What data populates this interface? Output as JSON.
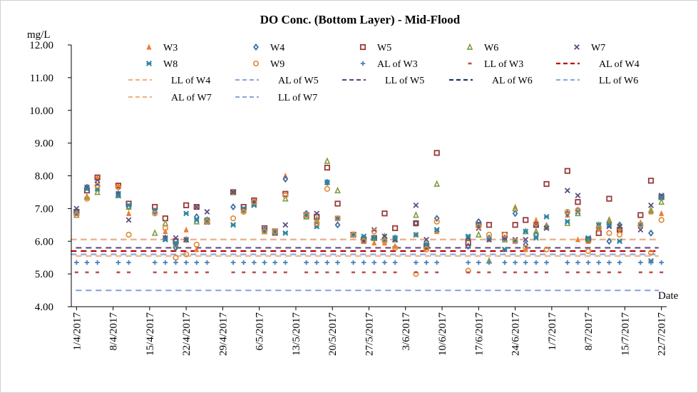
{
  "chart_data": {
    "type": "scatter",
    "title": "DO Conc. (Bottom Layer) - Mid-Flood",
    "ylabel": "mg/L",
    "xlabel": "Date",
    "ylim": [
      4,
      12
    ],
    "xlim": [
      "31/3/2017",
      "23/7/2017"
    ],
    "grid": false,
    "legend_position": "top",
    "y_ticks": [
      "4.00",
      "5.00",
      "6.00",
      "7.00",
      "8.00",
      "9.00",
      "10.00",
      "11.00",
      "12.00"
    ],
    "x_ticks": [
      "1/4/2017",
      "8/4/2017",
      "15/4/2017",
      "22/4/2017",
      "29/4/2017",
      "6/5/2017",
      "13/5/2017",
      "20/5/2017",
      "27/5/2017",
      "3/6/2017",
      "10/6/2017",
      "17/6/2017",
      "24/6/2017",
      "1/7/2017",
      "8/7/2017",
      "15/7/2017",
      "22/7/2017"
    ],
    "dates": [
      "1/4/2017",
      "3/4/2017",
      "5/4/2017",
      "9/4/2017",
      "11/4/2017",
      "16/4/2017",
      "18/4/2017",
      "20/4/2017",
      "22/4/2017",
      "24/4/2017",
      "26/4/2017",
      "1/5/2017",
      "3/5/2017",
      "5/5/2017",
      "7/5/2017",
      "9/5/2017",
      "11/5/2017",
      "15/5/2017",
      "17/5/2017",
      "19/5/2017",
      "21/5/2017",
      "24/5/2017",
      "26/5/2017",
      "28/5/2017",
      "30/5/2017",
      "1/6/2017",
      "5/6/2017",
      "7/6/2017",
      "9/6/2017",
      "15/6/2017",
      "17/6/2017",
      "19/6/2017",
      "22/6/2017",
      "24/6/2017",
      "26/6/2017",
      "28/6/2017",
      "30/6/2017",
      "4/7/2017",
      "6/7/2017",
      "8/7/2017",
      "10/7/2017",
      "12/7/2017",
      "14/7/2017",
      "18/7/2017",
      "20/7/2017",
      "22/7/2017"
    ],
    "series": [
      {
        "name": "W3",
        "marker": "triangle-filled",
        "color": "#ED7D31",
        "values": [
          6.85,
          7.35,
          7.95,
          7.7,
          6.85,
          6.95,
          6.3,
          5.9,
          6.35,
          5.75,
          6.6,
          7.5,
          6.95,
          7.2,
          6.3,
          6.25,
          8.0,
          6.8,
          6.7,
          7.8,
          6.7,
          6.2,
          6.0,
          5.95,
          5.95,
          5.85,
          6.2,
          5.8,
          6.3,
          6.1,
          6.5,
          6.05,
          6.1,
          7.05,
          5.75,
          6.65,
          6.5,
          6.8,
          6.05,
          6.0,
          6.45,
          6.6,
          6.35,
          6.55,
          6.9,
          6.85
        ]
      },
      {
        "name": "W4",
        "marker": "diamond",
        "color": "#3E6EA6",
        "values": [
          6.9,
          7.65,
          7.8,
          7.45,
          7.05,
          6.9,
          6.1,
          5.8,
          6.05,
          6.75,
          6.65,
          7.05,
          6.95,
          7.2,
          6.35,
          6.3,
          7.9,
          6.85,
          6.5,
          7.8,
          6.5,
          6.2,
          6.1,
          6.1,
          6.1,
          6.1,
          6.55,
          5.85,
          6.7,
          5.85,
          6.6,
          6.1,
          6.1,
          6.85,
          5.9,
          6.2,
          6.45,
          6.85,
          6.95,
          6.05,
          6.4,
          6.0,
          6.5,
          6.5,
          6.25,
          7.35
        ]
      },
      {
        "name": "W5",
        "marker": "square",
        "color": "#993A3A",
        "values": [
          6.9,
          7.55,
          7.95,
          7.7,
          7.15,
          7.05,
          6.7,
          6.0,
          7.1,
          7.05,
          6.6,
          7.5,
          7.05,
          7.25,
          6.4,
          6.3,
          7.45,
          6.8,
          6.75,
          8.25,
          7.15,
          6.2,
          6.05,
          6.1,
          6.85,
          6.4,
          6.55,
          5.85,
          8.7,
          5.95,
          6.5,
          6.5,
          6.2,
          6.5,
          6.65,
          6.5,
          7.75,
          8.15,
          7.2,
          6.05,
          6.25,
          7.3,
          6.35,
          6.8,
          7.85,
          7.35
        ]
      },
      {
        "name": "W6",
        "marker": "triangle",
        "color": "#7E9D44",
        "values": [
          6.8,
          7.35,
          7.5,
          7.4,
          7.05,
          6.25,
          6.55,
          5.9,
          6.05,
          6.6,
          6.65,
          7.5,
          6.95,
          7.15,
          6.3,
          6.25,
          7.3,
          6.75,
          6.65,
          8.45,
          7.55,
          6.2,
          6.05,
          6.1,
          6.15,
          6.05,
          6.8,
          5.9,
          7.75,
          6.1,
          6.2,
          5.4,
          6.05,
          7.0,
          6.3,
          6.3,
          6.45,
          6.55,
          6.85,
          6.05,
          6.5,
          6.65,
          6.45,
          6.55,
          6.95,
          7.2
        ]
      },
      {
        "name": "W7",
        "marker": "x",
        "color": "#5F4B82",
        "values": [
          7.0,
          7.65,
          7.75,
          7.45,
          6.65,
          6.95,
          6.1,
          6.1,
          6.05,
          7.05,
          6.9,
          7.5,
          7.0,
          7.2,
          6.35,
          6.25,
          6.5,
          6.8,
          6.85,
          7.8,
          6.7,
          6.2,
          6.0,
          6.35,
          6.15,
          6.05,
          7.1,
          6.05,
          6.35,
          6.1,
          6.4,
          6.05,
          6.1,
          6.05,
          6.05,
          6.5,
          6.4,
          7.55,
          7.4,
          6.1,
          6.5,
          6.45,
          6.45,
          6.35,
          7.1,
          7.4
        ]
      },
      {
        "name": "W8",
        "marker": "star",
        "color": "#2F86A0",
        "values": [
          6.85,
          7.6,
          7.6,
          7.4,
          7.1,
          6.95,
          6.05,
          5.95,
          6.85,
          6.65,
          6.65,
          6.5,
          7.0,
          7.1,
          6.35,
          6.3,
          6.25,
          6.8,
          6.45,
          7.8,
          6.7,
          6.2,
          6.15,
          6.1,
          6.05,
          6.1,
          6.2,
          5.9,
          6.35,
          6.15,
          6.5,
          6.1,
          5.75,
          6.0,
          6.3,
          6.1,
          6.75,
          6.6,
          6.9,
          6.1,
          6.5,
          6.5,
          6.0,
          6.5,
          5.4,
          7.35
        ]
      },
      {
        "name": "W9",
        "marker": "circle",
        "color": "#E38B3C",
        "values": [
          6.8,
          7.3,
          7.7,
          7.65,
          6.2,
          6.85,
          6.4,
          5.5,
          5.6,
          5.9,
          6.6,
          6.7,
          6.9,
          7.2,
          6.3,
          6.3,
          7.4,
          6.8,
          6.55,
          7.6,
          6.7,
          6.2,
          6.0,
          6.3,
          6.0,
          5.8,
          5.0,
          5.75,
          6.6,
          5.1,
          6.45,
          6.2,
          6.2,
          6.0,
          5.8,
          6.55,
          5.75,
          6.9,
          6.95,
          5.7,
          6.4,
          6.25,
          6.2,
          6.5,
          5.65,
          6.65
        ]
      },
      {
        "name": "AL of W3",
        "marker": "plus",
        "color": "#4F81BD",
        "values": [
          5.35,
          5.35,
          5.35,
          5.35,
          5.35,
          5.35,
          5.35,
          5.35,
          5.35,
          5.35,
          5.35,
          5.35,
          5.35,
          5.35,
          5.35,
          5.35,
          5.35,
          5.35,
          5.35,
          5.35,
          5.35,
          5.35,
          5.35,
          5.35,
          5.35,
          5.35,
          5.35,
          5.35,
          5.35,
          5.35,
          5.35,
          5.35,
          5.35,
          5.35,
          5.35,
          5.35,
          5.35,
          5.35,
          5.35,
          5.35,
          5.35,
          5.35,
          5.35,
          5.35,
          5.35,
          5.35
        ]
      },
      {
        "name": "LL of W3",
        "marker": "dash",
        "color": "#C0504D",
        "values": [
          5.05,
          5.05,
          5.05,
          5.05,
          5.05,
          5.05,
          5.05,
          5.05,
          5.05,
          5.05,
          5.05,
          5.05,
          5.05,
          5.05,
          5.05,
          5.05,
          5.05,
          5.05,
          5.05,
          5.05,
          5.05,
          5.05,
          5.05,
          5.05,
          5.05,
          5.05,
          5.05,
          5.05,
          5.05,
          5.05,
          5.05,
          5.05,
          5.05,
          5.05,
          5.05,
          5.05,
          5.05,
          5.05,
          5.05,
          5.05,
          5.05,
          5.05,
          5.05,
          5.05,
          5.05,
          5.05
        ]
      }
    ],
    "lines": [
      {
        "name": "AL of W4",
        "color": "#C00000",
        "value": 5.7
      },
      {
        "name": "LL of W4",
        "color": "#F4B183",
        "value": 5.55
      },
      {
        "name": "AL of W5",
        "color": "#8FAADC",
        "value": 5.6
      },
      {
        "name": "LL of W5",
        "color": "#5F4B82",
        "value": 5.8
      },
      {
        "name": "AL of W6",
        "color": "#1F3864",
        "value": 6.05
      },
      {
        "name": "LL of W6",
        "color": "#8FAADC",
        "value": 4.5
      },
      {
        "name": "AL of W7",
        "color": "#F4B183",
        "value": 6.05
      },
      {
        "name": "LL of W7",
        "color": "#8FAADC",
        "value": 4.5
      }
    ],
    "legend_order": [
      "W3",
      "W4",
      "W5",
      "W6",
      "W7",
      "W8",
      "W9",
      "AL of W3",
      "LL of W3",
      "AL of W4",
      "LL of W4",
      "AL of W5",
      "LL of W5",
      "AL of W6",
      "LL of W6",
      "AL of W7",
      "LL of W7"
    ]
  }
}
